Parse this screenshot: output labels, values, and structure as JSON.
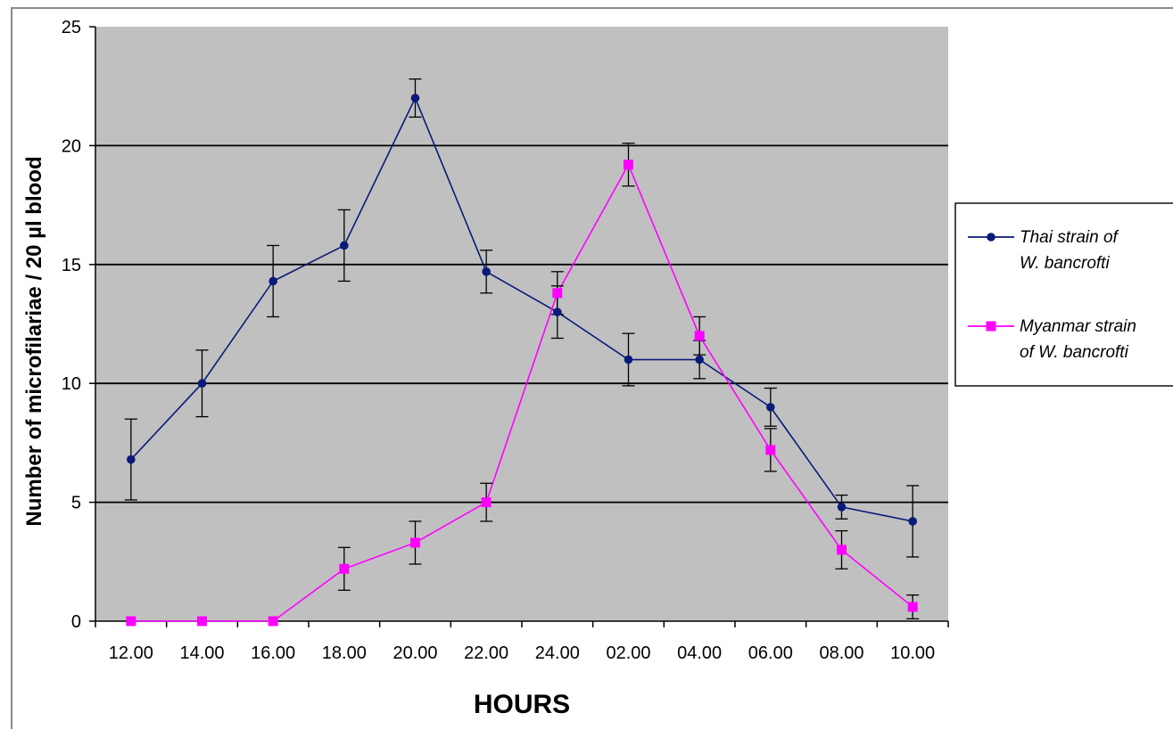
{
  "chart_data": {
    "type": "line",
    "xlabel": "HOURS",
    "ylabel": "Number of microfilariae / 20 µl blood",
    "categories": [
      "12.00",
      "14.00",
      "16.00",
      "18.00",
      "20.00",
      "22.00",
      "24.00",
      "02.00",
      "04.00",
      "06.00",
      "08.00",
      "10.00"
    ],
    "ylim": [
      0,
      25
    ],
    "yticks": [
      0,
      5,
      10,
      15,
      20,
      25
    ],
    "grid": true,
    "legend_position": "right",
    "series": [
      {
        "name_lines": [
          "Thai strain of",
          "W. bancrofti"
        ],
        "color": "#0a1a7a",
        "marker": "circle",
        "values": [
          6.8,
          10.0,
          14.3,
          15.8,
          22.0,
          14.7,
          13.0,
          11.0,
          11.0,
          9.0,
          4.8,
          4.2
        ],
        "error": [
          1.7,
          1.4,
          1.5,
          1.5,
          0.8,
          0.9,
          1.1,
          1.1,
          0.8,
          0.8,
          0.5,
          1.5
        ]
      },
      {
        "name_lines": [
          "Myanmar strain",
          "of W. bancrofti"
        ],
        "color": "#ff00ff",
        "marker": "square",
        "values": [
          0,
          0,
          0,
          2.2,
          3.3,
          5.0,
          13.8,
          19.2,
          12.0,
          7.2,
          3.0,
          0.6
        ],
        "error": [
          0,
          0,
          0,
          0.9,
          0.9,
          0.8,
          0.9,
          0.9,
          0.8,
          0.9,
          0.8,
          0.5
        ]
      }
    ]
  },
  "colors": {
    "plot_background": "#c0c0c0",
    "gridline": "#000000",
    "error_bar": "#000000"
  }
}
